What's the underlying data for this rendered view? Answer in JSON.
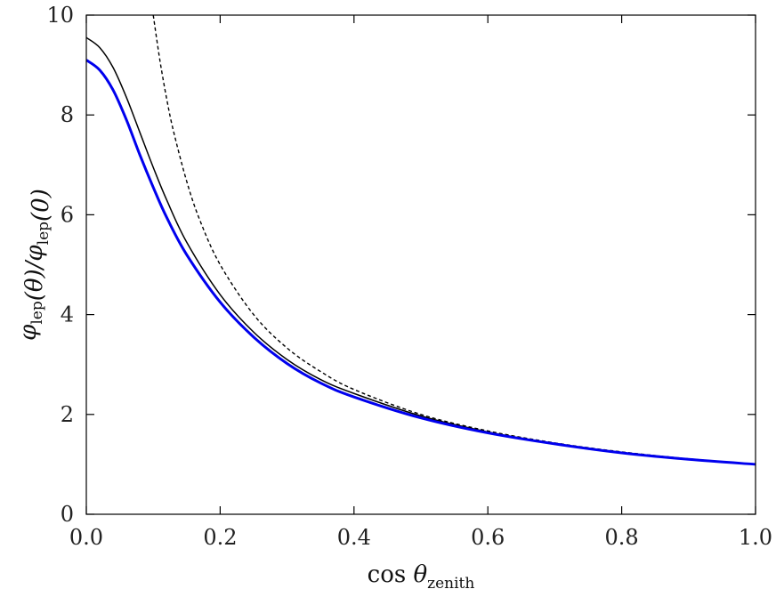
{
  "chart_data": {
    "type": "line",
    "xlabel_main": "cos θ",
    "xlabel_sub": "zenith",
    "ylabel_parts": [
      {
        "t": "φ",
        "sub": "lep"
      },
      {
        "t": "(θ)/"
      },
      {
        "t": "φ",
        "sub": "lep"
      },
      {
        "t": "(0)"
      }
    ],
    "xlim": [
      0.0,
      1.0
    ],
    "ylim": [
      0,
      10
    ],
    "xticks": [
      0.0,
      0.2,
      0.4,
      0.6,
      0.8,
      1.0
    ],
    "xtick_labels": [
      "0.0",
      "0.2",
      "0.4",
      "0.6",
      "0.8",
      "1.0"
    ],
    "yticks": [
      0,
      2,
      4,
      6,
      8,
      10
    ],
    "ytick_labels": [
      "0",
      "2",
      "4",
      "6",
      "8",
      "10"
    ],
    "grid": false,
    "series": [
      {
        "style": "dashed",
        "color": "#000000",
        "x": [
          0.1,
          0.11,
          0.12,
          0.13,
          0.15,
          0.17,
          0.2,
          0.25,
          0.3,
          0.35,
          0.4,
          0.5,
          0.6,
          0.7,
          0.8,
          0.9,
          1.0
        ],
        "y": [
          10.0,
          9.09,
          8.33,
          7.69,
          6.67,
          5.88,
          5.0,
          4.0,
          3.33,
          2.86,
          2.5,
          2.0,
          1.67,
          1.43,
          1.25,
          1.11,
          1.0
        ]
      },
      {
        "style": "solid",
        "color": "#000000",
        "x": [
          0.0,
          0.02,
          0.04,
          0.06,
          0.08,
          0.1,
          0.12,
          0.15,
          0.2,
          0.25,
          0.3,
          0.35,
          0.4,
          0.5,
          0.6,
          0.7,
          0.8,
          0.9,
          1.0
        ],
        "y": [
          9.55,
          9.35,
          8.95,
          8.35,
          7.65,
          6.95,
          6.3,
          5.45,
          4.4,
          3.65,
          3.1,
          2.7,
          2.42,
          1.97,
          1.65,
          1.42,
          1.24,
          1.11,
          1.0
        ]
      },
      {
        "style": "solid-thick",
        "color": "#0000ee",
        "x": [
          0.0,
          0.02,
          0.04,
          0.06,
          0.08,
          0.1,
          0.12,
          0.15,
          0.2,
          0.25,
          0.3,
          0.35,
          0.4,
          0.5,
          0.6,
          0.7,
          0.8,
          0.9,
          1.0
        ],
        "y": [
          9.1,
          8.9,
          8.5,
          7.9,
          7.2,
          6.55,
          5.95,
          5.2,
          4.25,
          3.55,
          3.02,
          2.63,
          2.35,
          1.93,
          1.63,
          1.41,
          1.23,
          1.1,
          1.0
        ]
      }
    ]
  }
}
